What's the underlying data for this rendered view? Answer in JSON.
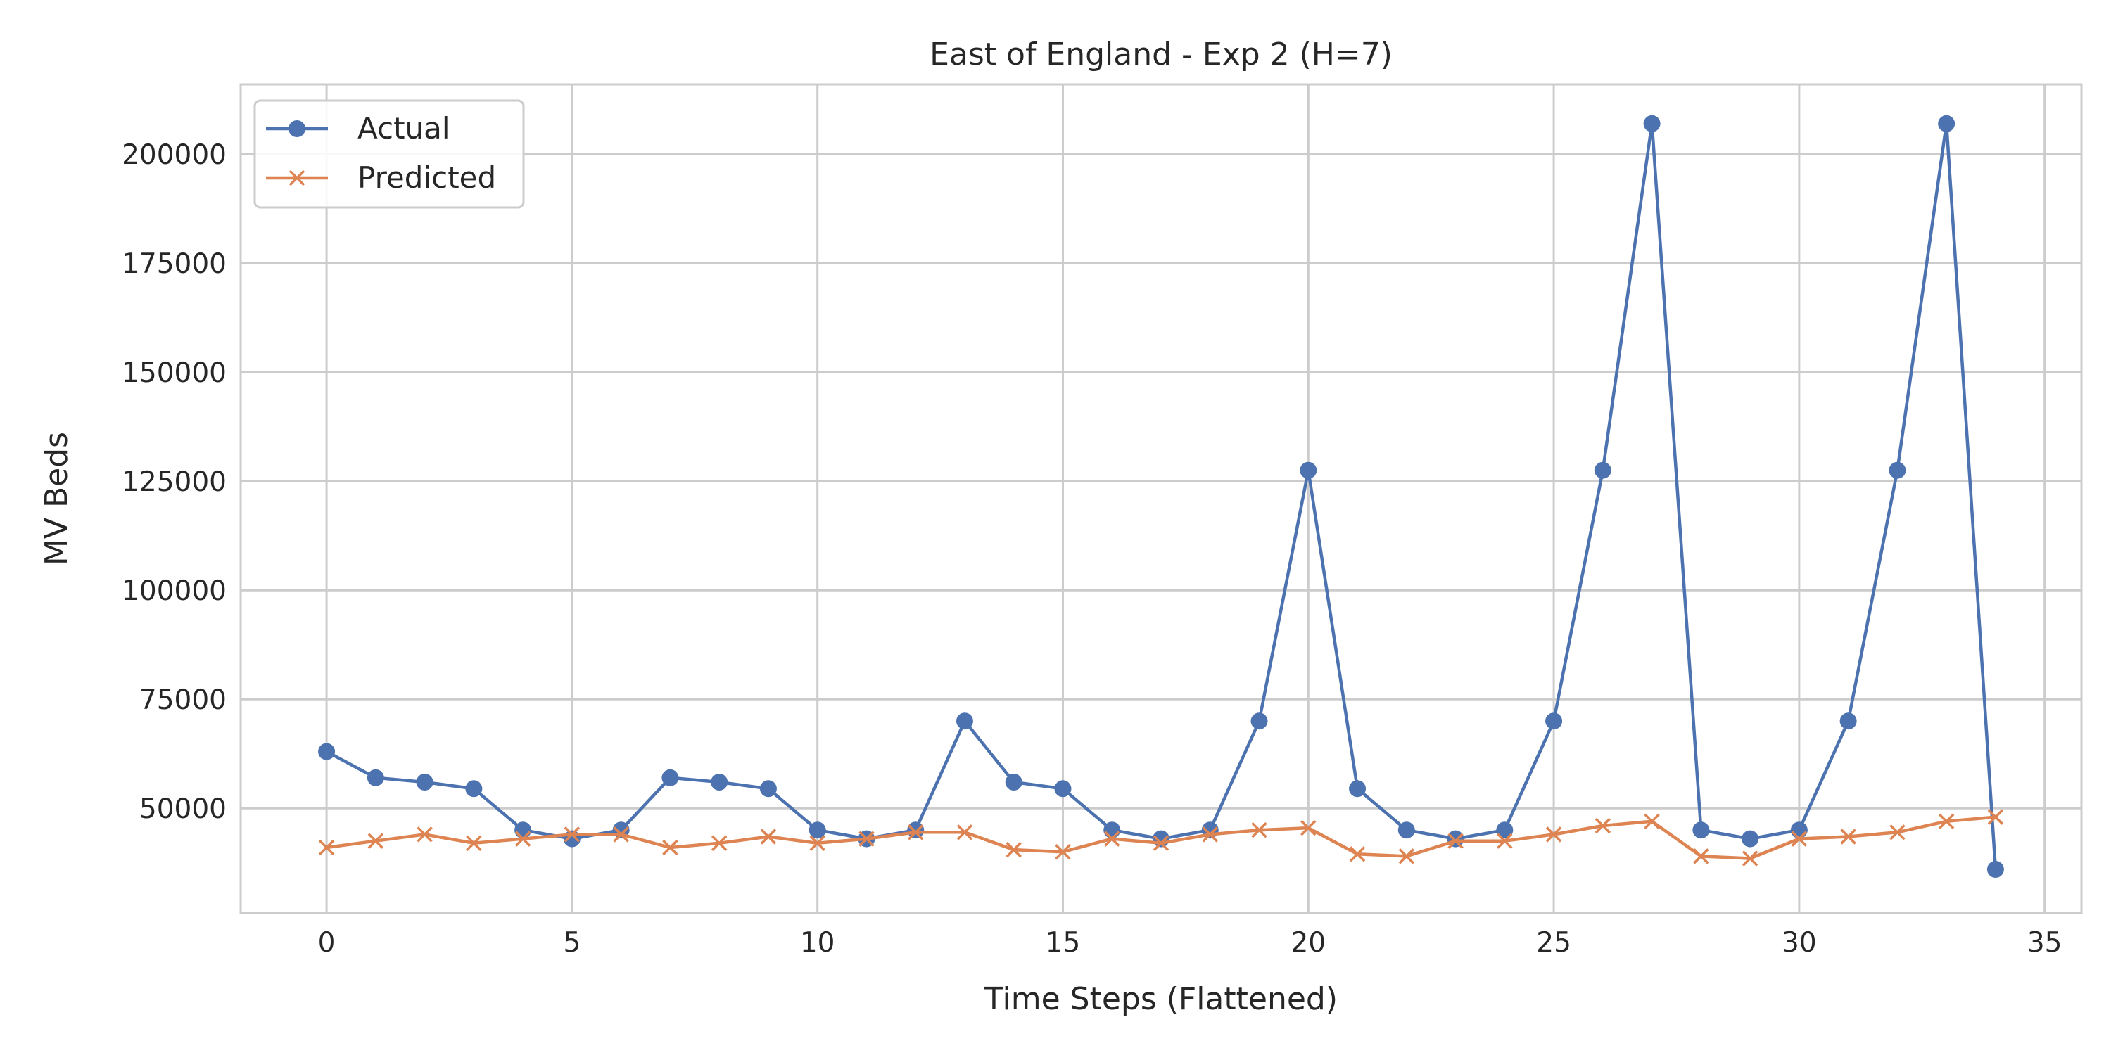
{
  "chart_data": {
    "type": "line",
    "title": "East of England - Exp 2 (H=7)",
    "xlabel": "Time Steps (Flattened)",
    "ylabel": "MV Beds",
    "xlim": [
      -1.75,
      35.75
    ],
    "ylim": [
      26000,
      216000
    ],
    "xticks": [
      0,
      5,
      10,
      15,
      20,
      25,
      30,
      35
    ],
    "yticks": [
      50000,
      75000,
      100000,
      125000,
      150000,
      175000,
      200000
    ],
    "grid": true,
    "legend": "top-left",
    "x": [
      0,
      1,
      2,
      3,
      4,
      5,
      6,
      7,
      8,
      9,
      10,
      11,
      12,
      13,
      14,
      15,
      16,
      17,
      18,
      19,
      20,
      21,
      22,
      23,
      24,
      25,
      26,
      27,
      28,
      29,
      30,
      31,
      32,
      33,
      34
    ],
    "series": [
      {
        "name": "Actual",
        "color": "#4c72b0",
        "marker": "circle",
        "values": [
          63000,
          57000,
          56000,
          54500,
          45000,
          43000,
          45000,
          57000,
          56000,
          54500,
          45000,
          43000,
          45000,
          70000,
          56000,
          54500,
          45000,
          43000,
          45000,
          70000,
          127500,
          54500,
          45000,
          43000,
          45000,
          70000,
          127500,
          207000,
          45000,
          43000,
          45000,
          70000,
          127500,
          207000,
          36000
        ]
      },
      {
        "name": "Predicted",
        "color": "#dd8452",
        "marker": "x",
        "values": [
          41000,
          42500,
          44000,
          42000,
          43000,
          44000,
          44000,
          41000,
          42000,
          43500,
          42000,
          43000,
          44500,
          44500,
          40500,
          40000,
          43000,
          42000,
          44000,
          45000,
          45500,
          39500,
          39000,
          42500,
          42500,
          44000,
          46000,
          47000,
          39000,
          38500,
          43000,
          43500,
          44500,
          47000,
          48000
        ]
      }
    ]
  }
}
